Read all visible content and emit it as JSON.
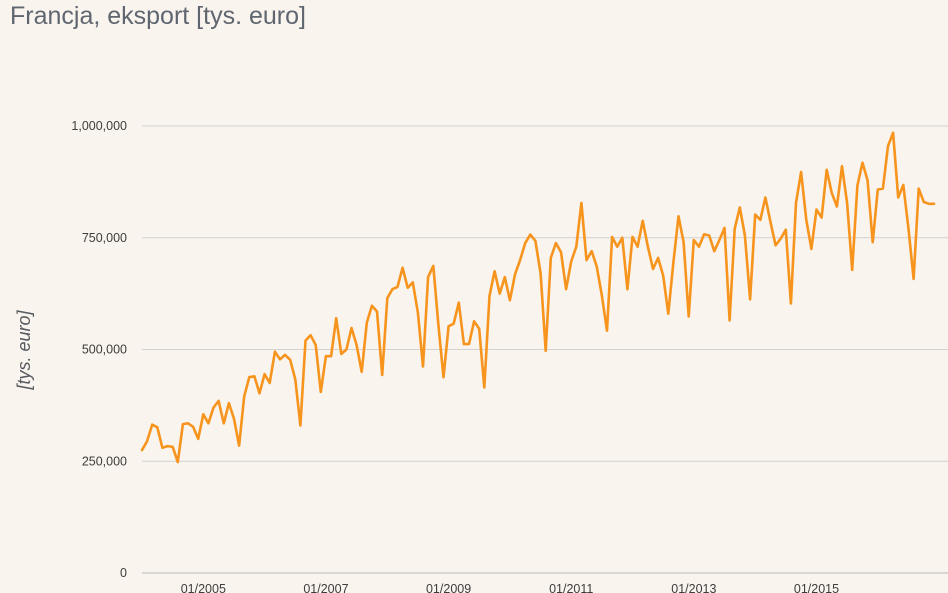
{
  "chart_data": {
    "type": "line",
    "title": "Francja, eksport [tys. euro]",
    "xlabel": "",
    "ylabel": "[tys. euro]",
    "colors": {
      "line": "#f7941d",
      "grid": "#d2d2d2",
      "background": "#f9f4ee"
    },
    "grid": true,
    "ylim": [
      0,
      1000000
    ],
    "yticks": [
      0,
      250000,
      500000,
      750000,
      1000000
    ],
    "ytick_labels": [
      "0",
      "250,000",
      "500,000",
      "750,000",
      "1,000,000"
    ],
    "xlim": [
      "2004-01",
      "2016-12"
    ],
    "xticks": [
      "2005-01",
      "2007-01",
      "2009-01",
      "2011-01",
      "2013-01",
      "2015-01"
    ],
    "xtick_labels": [
      "01/2005",
      "01/2007",
      "01/2009",
      "01/2011",
      "01/2013",
      "01/2015"
    ],
    "series": [
      {
        "name": "",
        "x": [
          "2004-01",
          "2004-02",
          "2004-03",
          "2004-04",
          "2004-05",
          "2004-06",
          "2004-07",
          "2004-08",
          "2004-09",
          "2004-10",
          "2004-11",
          "2004-12",
          "2005-01",
          "2005-02",
          "2005-03",
          "2005-04",
          "2005-05",
          "2005-06",
          "2005-07",
          "2005-08",
          "2005-09",
          "2005-10",
          "2005-11",
          "2005-12",
          "2006-01",
          "2006-02",
          "2006-03",
          "2006-04",
          "2006-05",
          "2006-06",
          "2006-07",
          "2006-08",
          "2006-09",
          "2006-10",
          "2006-11",
          "2006-12",
          "2007-01",
          "2007-02",
          "2007-03",
          "2007-04",
          "2007-05",
          "2007-06",
          "2007-07",
          "2007-08",
          "2007-09",
          "2007-10",
          "2007-11",
          "2007-12",
          "2008-01",
          "2008-02",
          "2008-03",
          "2008-04",
          "2008-05",
          "2008-06",
          "2008-07",
          "2008-08",
          "2008-09",
          "2008-10",
          "2008-11",
          "2008-12",
          "2009-01",
          "2009-02",
          "2009-03",
          "2009-04",
          "2009-05",
          "2009-06",
          "2009-07",
          "2009-08",
          "2009-09",
          "2009-10",
          "2009-11",
          "2009-12",
          "2010-01",
          "2010-02",
          "2010-03",
          "2010-04",
          "2010-05",
          "2010-06",
          "2010-07",
          "2010-08",
          "2010-09",
          "2010-10",
          "2010-11",
          "2010-12",
          "2011-01",
          "2011-02",
          "2011-03",
          "2011-04",
          "2011-05",
          "2011-06",
          "2011-07",
          "2011-08",
          "2011-09",
          "2011-10",
          "2011-11",
          "2011-12",
          "2012-01",
          "2012-02",
          "2012-03",
          "2012-04",
          "2012-05",
          "2012-06",
          "2012-07",
          "2012-08",
          "2012-09",
          "2012-10",
          "2012-11",
          "2012-12",
          "2013-01",
          "2013-02",
          "2013-03",
          "2013-04",
          "2013-05",
          "2013-06",
          "2013-07",
          "2013-08",
          "2013-09",
          "2013-10",
          "2013-11",
          "2013-12",
          "2014-01",
          "2014-02",
          "2014-03",
          "2014-04",
          "2014-05",
          "2014-06",
          "2014-07",
          "2014-08",
          "2014-09",
          "2014-10",
          "2014-11",
          "2014-12",
          "2015-01",
          "2015-02",
          "2015-03",
          "2015-04",
          "2015-05",
          "2015-06",
          "2015-07",
          "2015-08",
          "2015-09",
          "2015-10",
          "2015-11",
          "2015-12",
          "2016-01",
          "2016-02",
          "2016-03",
          "2016-04",
          "2016-05",
          "2016-06",
          "2016-07",
          "2016-08",
          "2016-09",
          "2016-10",
          "2016-11",
          "2016-12"
        ],
        "values": [
          275000,
          295000,
          332000,
          326000,
          280000,
          284000,
          282000,
          248000,
          333000,
          335000,
          327000,
          300000,
          355000,
          335000,
          370000,
          385000,
          335000,
          380000,
          345000,
          285000,
          395000,
          438000,
          440000,
          402000,
          445000,
          425000,
          495000,
          478000,
          488000,
          477000,
          433000,
          330000,
          520000,
          532000,
          510000,
          405000,
          485000,
          485000,
          570000,
          490000,
          500000,
          548000,
          510000,
          450000,
          560000,
          598000,
          585000,
          443000,
          615000,
          635000,
          640000,
          683000,
          638000,
          650000,
          582000,
          462000,
          662000,
          687000,
          555000,
          438000,
          552000,
          558000,
          605000,
          512000,
          512000,
          563000,
          546000,
          415000,
          620000,
          675000,
          625000,
          662000,
          610000,
          668000,
          700000,
          738000,
          757000,
          743000,
          670000,
          497000,
          705000,
          738000,
          718000,
          635000,
          697000,
          730000,
          828000,
          700000,
          720000,
          685000,
          620000,
          542000,
          752000,
          730000,
          750000,
          635000,
          752000,
          730000,
          788000,
          730000,
          680000,
          705000,
          665000,
          580000,
          695000,
          798000,
          740000,
          574000,
          745000,
          730000,
          758000,
          755000,
          720000,
          745000,
          772000,
          565000,
          770000,
          818000,
          755000,
          612000,
          802000,
          790000,
          840000,
          785000,
          733000,
          748000,
          768000,
          603000,
          828000,
          897000,
          790000,
          725000,
          813000,
          795000,
          902000,
          850000,
          820000,
          910000,
          828000,
          678000,
          867000,
          918000,
          878000,
          740000,
          858000,
          860000,
          955000,
          985000,
          840000,
          868000,
          770000,
          658000,
          860000,
          830000,
          826000,
          826000
        ]
      }
    ]
  }
}
